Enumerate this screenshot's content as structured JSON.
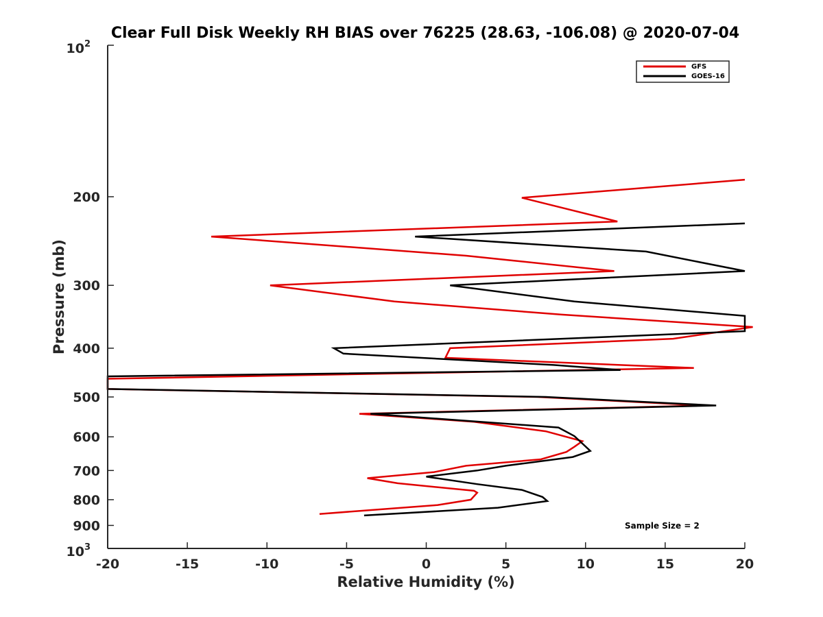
{
  "chart_data": {
    "type": "line",
    "title": "Clear Full Disk Weekly RH BIAS over 76225 (28.63, -106.08) @ 2020-07-04",
    "xlabel": "Relative Humidity (%)",
    "ylabel": "Pressure (mb)",
    "xlim": [
      -20,
      20
    ],
    "ylim": [
      100,
      1000
    ],
    "y_scale": "log",
    "y_reversed": true,
    "grid": false,
    "legend_position": "top-right",
    "x_ticks": [
      "-20",
      "-15",
      "-10",
      "-5",
      "0",
      "5",
      "10",
      "15",
      "20"
    ],
    "x_tick_values": [
      -20,
      -15,
      -10,
      -5,
      0,
      5,
      10,
      15,
      20
    ],
    "y_ticks": [
      {
        "base": "10",
        "exp": "2",
        "value": 100
      },
      {
        "label": "200",
        "value": 200
      },
      {
        "label": "300",
        "value": 300
      },
      {
        "label": "400",
        "value": 400
      },
      {
        "label": "500",
        "value": 500
      },
      {
        "label": "600",
        "value": 600
      },
      {
        "label": "700",
        "value": 700
      },
      {
        "label": "800",
        "value": 800
      },
      {
        "label": "900",
        "value": 900
      },
      {
        "base": "10",
        "exp": "3",
        "value": 1000
      }
    ],
    "annotation": "Sample Size = 2",
    "series": [
      {
        "name": "GFS",
        "color": "#e00000",
        "points": [
          [
            20,
            185
          ],
          [
            6,
            201
          ],
          [
            12,
            224
          ],
          [
            -13.5,
            240
          ],
          [
            2.5,
            262
          ],
          [
            11.8,
            281
          ],
          [
            -9.8,
            300
          ],
          [
            -2,
            323
          ],
          [
            8.5,
            343
          ],
          [
            20.5,
            363
          ],
          [
            15.5,
            383
          ],
          [
            1.5,
            400
          ],
          [
            1.2,
            418
          ],
          [
            16.8,
            438
          ],
          [
            -20,
            460
          ],
          [
            -20,
            482
          ],
          [
            7,
            500
          ],
          [
            17.5,
            520
          ],
          [
            -4.2,
            540
          ],
          [
            3,
            560
          ],
          [
            7.5,
            585
          ],
          [
            9.8,
            612
          ],
          [
            9.3,
            628
          ],
          [
            8.8,
            643
          ],
          [
            7.2,
            665
          ],
          [
            2.5,
            685
          ],
          [
            0.5,
            705
          ],
          [
            -3.7,
            725
          ],
          [
            -1.8,
            742
          ],
          [
            3,
            768
          ],
          [
            3.2,
            775
          ],
          [
            2.8,
            800
          ],
          [
            0.7,
            820
          ],
          [
            -6.7,
            854
          ]
        ]
      },
      {
        "name": "GOES-16",
        "color": "#000000",
        "points": [
          [
            20,
            226
          ],
          [
            -0.7,
            240
          ],
          [
            13.8,
            257
          ],
          [
            20,
            281
          ],
          [
            1.5,
            300
          ],
          [
            9.3,
            323
          ],
          [
            20,
            345
          ],
          [
            20,
            370
          ],
          [
            -5.8,
            400
          ],
          [
            -5.2,
            410
          ],
          [
            8,
            432
          ],
          [
            12.2,
            442
          ],
          [
            -20,
            455
          ],
          [
            -20,
            482
          ],
          [
            7.5,
            500
          ],
          [
            18.2,
            520
          ],
          [
            -3.5,
            540
          ],
          [
            8.3,
            575
          ],
          [
            9.3,
            598
          ],
          [
            10.3,
            640
          ],
          [
            9.2,
            658
          ],
          [
            5,
            685
          ],
          [
            3.2,
            700
          ],
          [
            0,
            720
          ],
          [
            3.2,
            745
          ],
          [
            6,
            765
          ],
          [
            7.3,
            790
          ],
          [
            7.6,
            805
          ],
          [
            4.5,
            830
          ],
          [
            -3.9,
            860
          ]
        ]
      }
    ]
  }
}
